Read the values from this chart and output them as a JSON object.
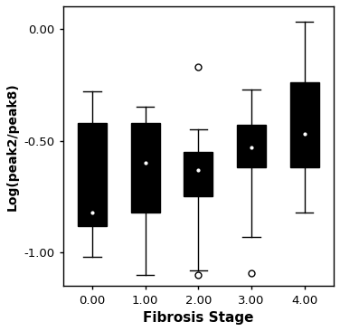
{
  "categories": [
    0.0,
    1.0,
    2.0,
    3.0,
    4.0
  ],
  "xtick_labels": [
    "0.00",
    "1.00",
    "2.00",
    "3.00",
    "4.00"
  ],
  "xlabel": "Fibrosis Stage",
  "ylabel": "Log(peak2/peak8)",
  "ylim": [
    -1.15,
    0.1
  ],
  "yticks": [
    0.0,
    -0.5,
    -1.0
  ],
  "ytick_labels": [
    "0.00",
    "-0.50",
    "-1.00"
  ],
  "boxes": [
    {
      "q1": -0.88,
      "median": -0.82,
      "q3": -0.42,
      "whisker_low": -1.02,
      "whisker_high": -0.28,
      "outliers": []
    },
    {
      "q1": -0.82,
      "median": -0.6,
      "q3": -0.42,
      "whisker_low": -1.1,
      "whisker_high": -0.35,
      "outliers": []
    },
    {
      "q1": -0.75,
      "median": -0.63,
      "q3": -0.55,
      "whisker_low": -1.08,
      "whisker_high": -0.45,
      "outliers": [
        -0.17,
        -1.1
      ]
    },
    {
      "q1": -0.62,
      "median": -0.53,
      "q3": -0.43,
      "whisker_low": -0.93,
      "whisker_high": -0.27,
      "outliers": [
        -1.09
      ]
    },
    {
      "q1": -0.62,
      "median": -0.47,
      "q3": -0.24,
      "whisker_low": -0.82,
      "whisker_high": 0.03,
      "outliers": []
    }
  ],
  "box_color": "#000000",
  "whisker_color": "#000000",
  "outlier_color": "#000000",
  "background_color": "#ffffff",
  "box_width": 0.55,
  "title": ""
}
